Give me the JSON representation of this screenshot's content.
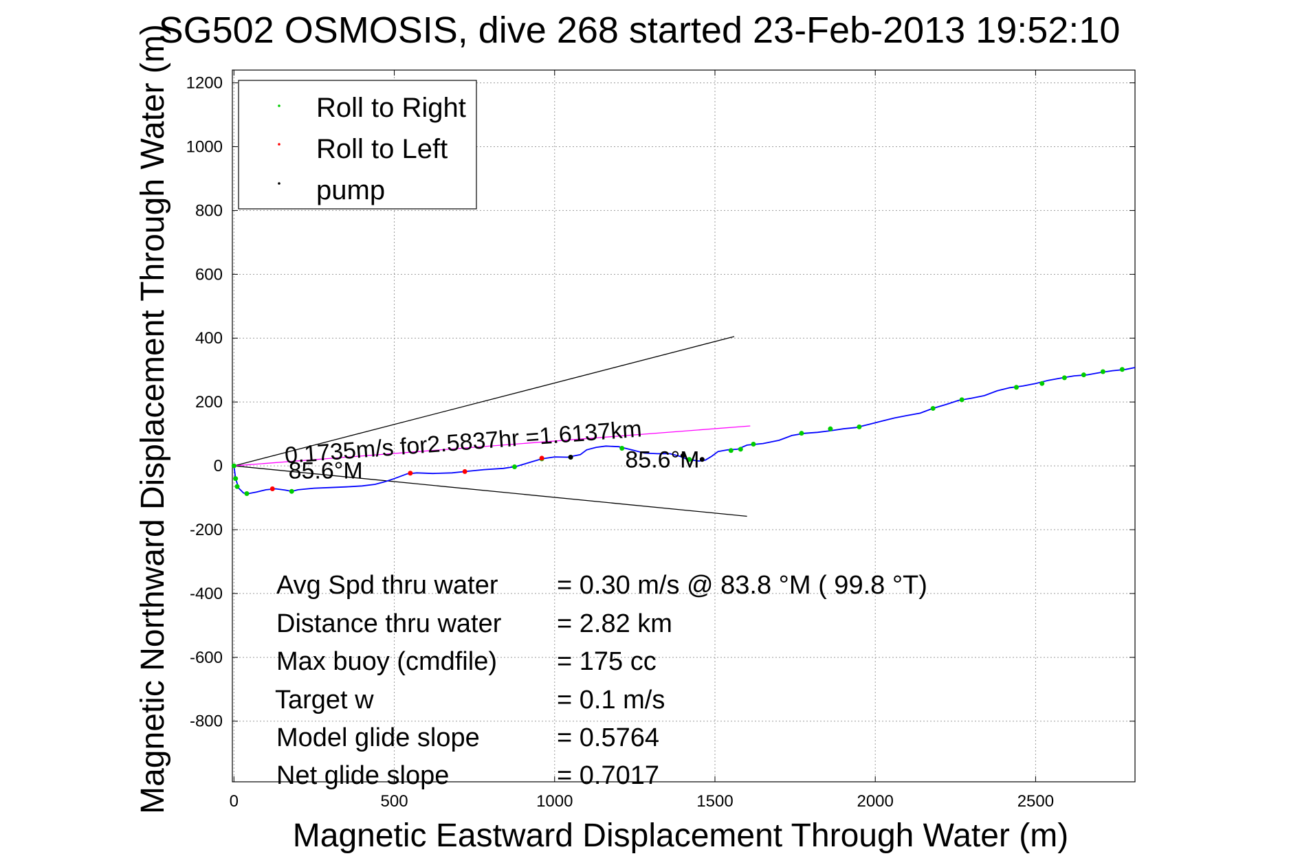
{
  "chart_data": {
    "type": "line",
    "title": "SG502 OSMOSIS, dive 268 started 23-Feb-2013 19:52:10",
    "xlabel": "Magnetic Eastward Displacement Through Water (m)",
    "ylabel": "Magnetic Northward Displacement Through Water (m)",
    "xlim": [
      -5,
      2810
    ],
    "ylim": [
      -990,
      1240
    ],
    "xticks": [
      0,
      500,
      1000,
      1500,
      2000,
      2500
    ],
    "yticks": [
      -800,
      -600,
      -400,
      -200,
      0,
      200,
      400,
      600,
      800,
      1000,
      1200
    ],
    "grid": true,
    "legend_position": "top-left",
    "legend": [
      {
        "label": "Roll to Right",
        "color": "#00cc00"
      },
      {
        "label": "Roll to Left",
        "color": "#ff0000"
      },
      {
        "label": "pump",
        "color": "#000000"
      }
    ],
    "series": [
      {
        "name": "track",
        "color": "#0000ff",
        "x": [
          0,
          5,
          15,
          30,
          45,
          70,
          100,
          130,
          160,
          180,
          200,
          250,
          300,
          350,
          400,
          440,
          470,
          500,
          540,
          570,
          620,
          680,
          720,
          780,
          840,
          880,
          920,
          960,
          1000,
          1040,
          1080,
          1100,
          1130,
          1160,
          1200,
          1240,
          1280,
          1320,
          1360,
          1390,
          1410,
          1430,
          1450,
          1470,
          1490,
          1510,
          1540,
          1570,
          1600,
          1650,
          1700,
          1740,
          1780,
          1820,
          1860,
          1900,
          1940,
          1980,
          2020,
          2060,
          2100,
          2140,
          2180,
          2220,
          2260,
          2300,
          2340,
          2380,
          2420,
          2460,
          2500,
          2540,
          2580,
          2620,
          2660,
          2700,
          2740,
          2780,
          2810
        ],
        "y": [
          0,
          -40,
          -70,
          -85,
          -87,
          -82,
          -75,
          -72,
          -76,
          -80,
          -75,
          -70,
          -68,
          -66,
          -63,
          -58,
          -50,
          -40,
          -25,
          -22,
          -24,
          -22,
          -18,
          -12,
          -8,
          -2,
          10,
          22,
          28,
          27,
          35,
          50,
          58,
          62,
          60,
          50,
          40,
          38,
          38,
          30,
          22,
          18,
          15,
          18,
          30,
          45,
          50,
          52,
          65,
          70,
          80,
          95,
          102,
          105,
          110,
          116,
          120,
          130,
          140,
          150,
          158,
          165,
          180,
          192,
          205,
          212,
          220,
          235,
          245,
          250,
          258,
          268,
          275,
          282,
          285,
          292,
          298,
          302,
          308
        ]
      },
      {
        "name": "Roll to Right",
        "color": "#00cc00",
        "x": [
          0,
          5,
          10,
          40,
          180,
          875,
          960,
          1050,
          1210,
          1420,
          1550,
          1580,
          1620,
          1770,
          1860,
          1950,
          2180,
          2270,
          2440,
          2520,
          2590,
          2650,
          2710,
          2770
        ],
        "y": [
          0,
          -40,
          -65,
          -87,
          -80,
          -3,
          22,
          27,
          55,
          20,
          48,
          52,
          68,
          102,
          116,
          122,
          180,
          207,
          246,
          258,
          276,
          285,
          295,
          302
        ]
      },
      {
        "name": "Roll to Left",
        "color": "#ff0000",
        "x": [
          120,
          550,
          720,
          960
        ],
        "y": [
          -72,
          -23,
          -18,
          24
        ]
      },
      {
        "name": "pump",
        "color": "#000000",
        "x": [
          1050,
          1400,
          1460
        ],
        "y": [
          27,
          32,
          20
        ]
      }
    ],
    "reference_lines": [
      {
        "name": "upper_bound",
        "color": "#000000",
        "x": [
          0,
          1560
        ],
        "y": [
          0,
          405
        ]
      },
      {
        "name": "lower_bound",
        "color": "#000000",
        "x": [
          0,
          1600
        ],
        "y": [
          0,
          -158
        ]
      },
      {
        "name": "course",
        "color": "#ff00ff",
        "x": [
          0,
          1610
        ],
        "y": [
          0,
          125
        ]
      }
    ],
    "annotations": [
      {
        "text": "0.1735m/s for2.5837hr =1.6137km",
        "x": 160,
        "y": 8,
        "rotate": -4.3
      },
      {
        "text": "85.6°M",
        "x": 170,
        "y": -40,
        "rotate": 0
      },
      {
        "text": "85.6°M",
        "x": 1220,
        "y": -5,
        "rotate": 0
      }
    ],
    "stats": [
      {
        "label": "Avg Spd thru water",
        "value": "=  0.30 m/s @  83.8 °M ( 99.8 °T)"
      },
      {
        "label": "Distance thru water",
        "value": "=  2.82 km"
      },
      {
        "label": "Max buoy (cmdfile)",
        "value": "= 175 cc"
      },
      {
        "label": "Target w",
        "value": "= 0.1 m/s"
      },
      {
        "label": "Model glide slope",
        "value": "= 0.5764"
      },
      {
        "label": "Net glide slope",
        "value": "= 0.7017"
      }
    ]
  }
}
